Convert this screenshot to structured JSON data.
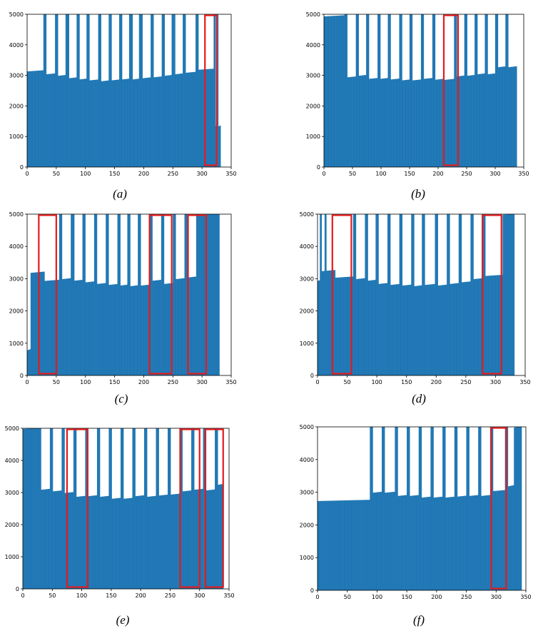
{
  "figure": {
    "axis_color": "#000000",
    "bar_color": "#1f77b4",
    "highlight_color": "#e41a1c"
  },
  "chart_data": [
    {
      "type": "bar",
      "label": "(a)",
      "title": "",
      "xlabel": "",
      "ylabel": "",
      "xlim": [
        0,
        350
      ],
      "ylim": [
        0,
        5000
      ],
      "xticks": [
        0,
        50,
        100,
        150,
        200,
        250,
        300,
        350
      ],
      "yticks": [
        0,
        1000,
        2000,
        3000,
        4000,
        5000
      ],
      "n": 332,
      "gaps": [
        [
          28,
          32
        ],
        [
          48,
          52
        ],
        [
          66,
          71
        ],
        [
          85,
          89
        ],
        [
          102,
          106
        ],
        [
          122,
          126
        ],
        [
          140,
          144
        ],
        [
          158,
          162
        ],
        [
          175,
          180
        ],
        [
          192,
          197
        ],
        [
          212,
          216
        ],
        [
          231,
          235
        ],
        [
          248,
          253
        ],
        [
          267,
          271
        ],
        [
          289,
          293
        ],
        [
          320,
          322
        ],
        [
          324,
          327
        ]
      ],
      "base_low": [
        3150,
        3050,
        3000,
        2920,
        2880,
        2850,
        2820,
        2850,
        2880,
        2880,
        2920,
        2950,
        3000,
        3050,
        3100,
        3200,
        1350
      ],
      "base_high": [
        5000,
        4900,
        4780,
        4700,
        4660,
        4630,
        4580,
        4570,
        4620,
        4580,
        4600,
        4660,
        4700,
        4780,
        4900,
        5000,
        1350
      ],
      "breaks": [
        0,
        30,
        50,
        69,
        87,
        104,
        124,
        142,
        160,
        178,
        195,
        214,
        233,
        251,
        269,
        291,
        321,
        328
      ],
      "boxes": [
        [
          305,
          325
        ]
      ]
    },
    {
      "type": "bar",
      "label": "(b)",
      "title": "",
      "xlabel": "",
      "ylabel": "",
      "xlim": [
        0,
        350
      ],
      "ylim": [
        0,
        5000
      ],
      "xticks": [
        0,
        50,
        100,
        150,
        200,
        250,
        300,
        350
      ],
      "yticks": [
        0,
        1000,
        2000,
        3000,
        4000,
        5000
      ],
      "n": 338,
      "gaps": [
        [
          36,
          40
        ],
        [
          56,
          60
        ],
        [
          74,
          78
        ],
        [
          94,
          98
        ],
        [
          112,
          116
        ],
        [
          132,
          136
        ],
        [
          150,
          154
        ],
        [
          170,
          174
        ],
        [
          190,
          194
        ],
        [
          228,
          232
        ],
        [
          246,
          250
        ],
        [
          264,
          268
        ],
        [
          282,
          286
        ],
        [
          300,
          304
        ],
        [
          318,
          322
        ]
      ],
      "base_low": [
        4950,
        2950,
        3000,
        2900,
        2900,
        2880,
        2850,
        2850,
        2900,
        2870,
        2870,
        2980,
        3000,
        3050,
        3050,
        3280
      ],
      "base_high": [
        5000,
        4900,
        4800,
        4700,
        4650,
        4620,
        4580,
        4550,
        4550,
        4620,
        4620,
        4680,
        4750,
        4850,
        4950,
        5000
      ],
      "breaks": [
        0,
        38,
        58,
        76,
        96,
        114,
        134,
        152,
        172,
        192,
        210,
        230,
        248,
        266,
        284,
        302,
        320
      ],
      "boxes": [
        [
          210,
          235
        ]
      ]
    },
    {
      "type": "bar",
      "label": "(c)",
      "title": "",
      "xlabel": "",
      "ylabel": "",
      "xlim": [
        0,
        350
      ],
      "ylim": [
        0,
        5000
      ],
      "xticks": [
        0,
        50,
        100,
        150,
        200,
        250,
        300,
        350
      ],
      "yticks": [
        0,
        1000,
        2000,
        3000,
        4000,
        5000
      ],
      "n": 330,
      "gaps": [
        [
          55,
          59
        ],
        [
          75,
          80
        ],
        [
          95,
          99
        ],
        [
          115,
          119
        ],
        [
          135,
          139
        ],
        [
          155,
          159
        ],
        [
          172,
          176
        ],
        [
          190,
          194
        ],
        [
          210,
          214
        ],
        [
          230,
          234
        ],
        [
          250,
          254
        ],
        [
          270,
          274
        ],
        [
          290,
          294
        ],
        [
          308,
          312
        ]
      ],
      "base_low": [
        800,
        3200,
        2950,
        3000,
        2950,
        2900,
        2850,
        2820,
        2800,
        2780,
        2800,
        2950,
        2850,
        3000,
        3050,
        5000
      ],
      "base_high": [
        800,
        4950,
        4800,
        4700,
        4650,
        4600,
        4580,
        4560,
        4850,
        4600,
        4650,
        4700,
        4800,
        4950,
        5000,
        5000
      ],
      "breaks": [
        0,
        6,
        30,
        57,
        77,
        97,
        117,
        137,
        157,
        174,
        192,
        212,
        232,
        252,
        272,
        292
      ],
      "boxes": [
        [
          20,
          50
        ],
        [
          210,
          248
        ],
        [
          276,
          307
        ]
      ]
    },
    {
      "type": "bar",
      "label": "(d)",
      "title": "",
      "xlabel": "",
      "ylabel": "",
      "xlim": [
        0,
        350
      ],
      "ylim": [
        0,
        5000
      ],
      "xticks": [
        0,
        50,
        100,
        150,
        200,
        250,
        300,
        350
      ],
      "yticks": [
        0,
        1000,
        2000,
        3000,
        4000,
        5000
      ],
      "n": 332,
      "gaps": [
        [
          4,
          6
        ],
        [
          12,
          14
        ],
        [
          60,
          64
        ],
        [
          80,
          84
        ],
        [
          98,
          102
        ],
        [
          118,
          122
        ],
        [
          138,
          142
        ],
        [
          158,
          162
        ],
        [
          176,
          180
        ],
        [
          198,
          202
        ],
        [
          218,
          222
        ],
        [
          238,
          242
        ],
        [
          258,
          262
        ],
        [
          278,
          282
        ]
      ],
      "base_low": [
        2950,
        3250,
        3050,
        3000,
        2950,
        2850,
        2820,
        2800,
        2780,
        2820,
        2800,
        2850,
        2900,
        3000,
        3100,
        5000
      ],
      "base_high": [
        2950,
        4950,
        4850,
        4750,
        4700,
        4650,
        4600,
        4580,
        4850,
        4600,
        4600,
        4680,
        4700,
        4800,
        4950,
        5000
      ],
      "breaks": [
        0,
        6,
        30,
        62,
        82,
        100,
        120,
        140,
        160,
        178,
        200,
        220,
        240,
        260,
        280,
        312
      ],
      "boxes": [
        [
          25,
          57
        ],
        [
          278,
          310
        ]
      ]
    },
    {
      "type": "bar",
      "label": "(e)",
      "title": "",
      "xlabel": "",
      "ylabel": "",
      "xlim": [
        0,
        350
      ],
      "ylim": [
        0,
        5000
      ],
      "xticks": [
        0,
        50,
        100,
        150,
        200,
        250,
        300,
        350
      ],
      "yticks": [
        0,
        1000,
        2000,
        3000,
        4000,
        5000
      ],
      "n": 340,
      "gaps": [
        [
          26,
          30
        ],
        [
          46,
          50
        ],
        [
          66,
          70
        ],
        [
          86,
          90
        ],
        [
          106,
          110
        ],
        [
          126,
          130
        ],
        [
          146,
          150
        ],
        [
          166,
          170
        ],
        [
          186,
          190
        ],
        [
          206,
          210
        ],
        [
          226,
          230
        ],
        [
          246,
          250
        ],
        [
          266,
          270
        ],
        [
          286,
          290
        ],
        [
          306,
          310
        ],
        [
          326,
          330
        ]
      ],
      "base_low": [
        5000,
        3100,
        3050,
        3000,
        2880,
        2900,
        2880,
        2820,
        2820,
        2900,
        2880,
        2920,
        2950,
        3050,
        3100,
        3080,
        3250
      ],
      "base_high": [
        5000,
        4880,
        4800,
        4750,
        4650,
        4620,
        4580,
        4600,
        4800,
        4600,
        4620,
        4650,
        4700,
        4800,
        4950,
        4950,
        5000
      ],
      "breaks": [
        0,
        28,
        48,
        68,
        88,
        108,
        128,
        148,
        168,
        188,
        208,
        228,
        248,
        268,
        288,
        308,
        328
      ],
      "boxes": [
        [
          75,
          110
        ],
        [
          267,
          300
        ],
        [
          310,
          340
        ]
      ]
    },
    {
      "type": "bar",
      "label": "(f)",
      "title": "",
      "xlabel": "",
      "ylabel": "",
      "xlim": [
        0,
        350
      ],
      "ylim": [
        0,
        5000
      ],
      "xticks": [
        0,
        50,
        100,
        150,
        200,
        250,
        300,
        350
      ],
      "yticks": [
        0,
        1000,
        2000,
        3000,
        4000,
        5000
      ],
      "n": 343,
      "gaps": [
        [
          88,
          92
        ],
        [
          108,
          112
        ],
        [
          130,
          134
        ],
        [
          150,
          154
        ],
        [
          170,
          174
        ],
        [
          190,
          194
        ],
        [
          210,
          214
        ],
        [
          230,
          234
        ],
        [
          250,
          254
        ],
        [
          270,
          274
        ],
        [
          290,
          294
        ],
        [
          315,
          319
        ]
      ],
      "base_low": [
        2750,
        3000,
        3000,
        2900,
        2900,
        2850,
        2850,
        2850,
        2880,
        2900,
        2900,
        3050,
        3050,
        3200,
        5000
      ],
      "base_high": [
        2750,
        4350,
        4600,
        4580,
        4550,
        4820,
        4560,
        4580,
        4620,
        4650,
        4800,
        4950,
        4950,
        5000,
        5000
      ],
      "breaks": [
        0,
        90,
        110,
        132,
        152,
        172,
        192,
        212,
        232,
        252,
        272,
        292,
        317,
        320,
        330
      ],
      "boxes": [
        [
          292,
          317
        ]
      ]
    }
  ]
}
